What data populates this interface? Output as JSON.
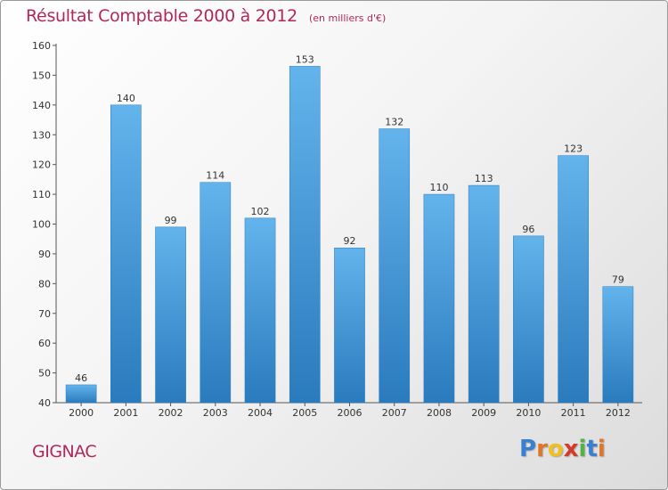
{
  "chart_data": {
    "type": "bar",
    "title": "Résultat Comptable 2000 à 2012",
    "subtitle": "(en milliers d'€)",
    "xlabel": "",
    "ylabel": "",
    "categories": [
      "2000",
      "2001",
      "2002",
      "2003",
      "2004",
      "2005",
      "2006",
      "2007",
      "2008",
      "2009",
      "2010",
      "2011",
      "2012"
    ],
    "values": [
      46,
      140,
      99,
      114,
      102,
      153,
      92,
      132,
      110,
      113,
      96,
      123,
      79
    ],
    "ylim": [
      40,
      160
    ],
    "yticks": [
      40,
      50,
      60,
      70,
      80,
      90,
      100,
      110,
      120,
      130,
      140,
      150,
      160
    ],
    "grid": false,
    "colors": {
      "bar_light": "#63b3ec",
      "bar_dark": "#2a7bbd",
      "axis": "#555555",
      "text": "#333333"
    }
  },
  "location": "GIGNAC",
  "brand": {
    "letters": [
      "P",
      "r",
      "o",
      "x",
      "i",
      "t",
      "i"
    ],
    "colors": [
      "#3a7fd0",
      "#e0752a",
      "#f0c020",
      "#d43a2a",
      "#58b048",
      "#3a7fd0",
      "#e0752a"
    ]
  },
  "theme": {
    "accent": "#b0285a"
  }
}
